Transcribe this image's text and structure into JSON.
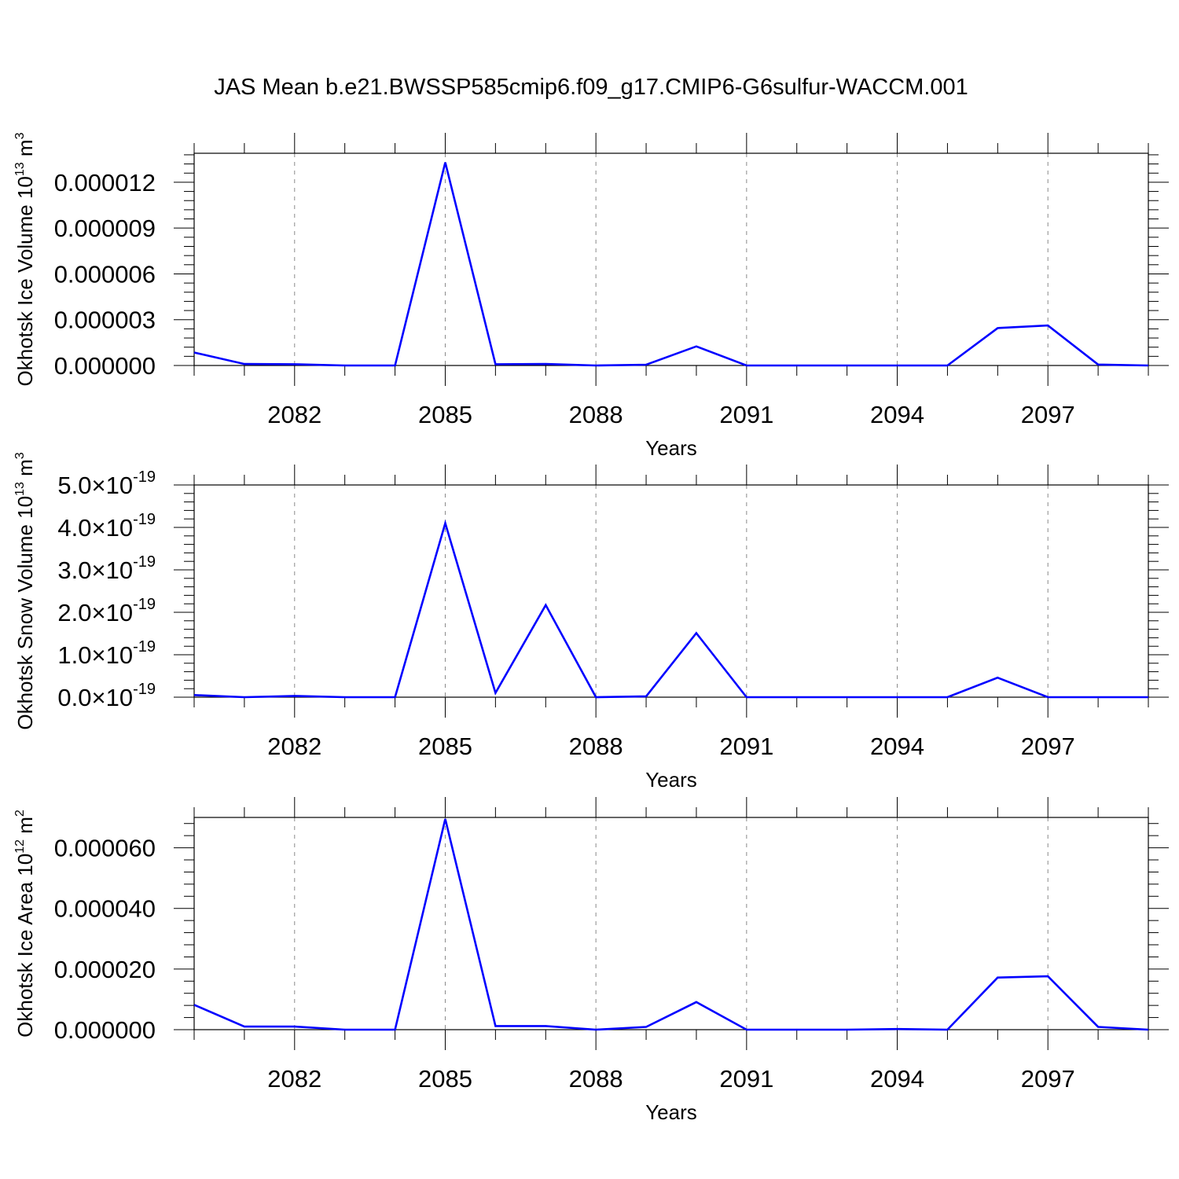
{
  "figure": {
    "title": "JAS Mean b.e21.BWSSP585cmip6.f09_g17.CMIP6-G6sulfur-WACCM.001"
  },
  "chart_data": [
    {
      "type": "line",
      "xlabel": "Years",
      "ylabel": "Okhotsk Ice Volume 10",
      "ylabel_exp": "13",
      "ylabel_unit": " m",
      "ylabel_unit_exp": "3",
      "line_color": "#0000ff",
      "grid": "vertical dashed at labeled years",
      "xlim": [
        2080,
        2099
      ],
      "ylim": [
        0,
        1.39e-05
      ],
      "x_ticks": [
        2082,
        2085,
        2088,
        2091,
        2094,
        2097
      ],
      "x_tick_labels": [
        "2082",
        "2085",
        "2088",
        "2091",
        "2094",
        "2097"
      ],
      "y_ticks": [
        0,
        3e-06,
        6e-06,
        9e-06,
        1.2e-05
      ],
      "y_tick_labels": [
        "0.000000",
        "0.000003",
        "0.000006",
        "0.000009",
        "0.000012"
      ],
      "x": [
        2080,
        2081,
        2082,
        2083,
        2084,
        2085,
        2086,
        2087,
        2088,
        2089,
        2090,
        2091,
        2092,
        2093,
        2094,
        2095,
        2096,
        2097,
        2098,
        2099
      ],
      "series": [
        {
          "values": [
            8.5e-07,
            1e-07,
            8e-08,
            0.0,
            0.0,
            1.33e-05,
            8e-08,
            1e-07,
            0.0,
            5e-08,
            1.25e-06,
            0.0,
            0.0,
            0.0,
            0.0,
            0.0,
            2.45e-06,
            2.62e-06,
            6e-08,
            0.0
          ]
        }
      ]
    },
    {
      "type": "line",
      "xlabel": "Years",
      "ylabel": "Okhotsk Snow Volume 10",
      "ylabel_exp": "13",
      "ylabel_unit": " m",
      "ylabel_unit_exp": "3",
      "line_color": "#0000ff",
      "grid": "vertical dashed at labeled years",
      "xlim": [
        2080,
        2099
      ],
      "ylim": [
        0,
        5e-19
      ],
      "x_ticks": [
        2082,
        2085,
        2088,
        2091,
        2094,
        2097
      ],
      "x_tick_labels": [
        "2082",
        "2085",
        "2088",
        "2091",
        "2094",
        "2097"
      ],
      "y_ticks": [
        0,
        1e-19,
        2e-19,
        3e-19,
        4e-19,
        5e-19
      ],
      "y_tick_mantissas": [
        "0.0",
        "1.0",
        "2.0",
        "3.0",
        "4.0",
        "5.0"
      ],
      "y_tick_times": "×10",
      "y_tick_exp": "-19",
      "x": [
        2080,
        2081,
        2082,
        2083,
        2084,
        2085,
        2086,
        2087,
        2088,
        2089,
        2090,
        2091,
        2092,
        2093,
        2094,
        2095,
        2096,
        2097,
        2098,
        2099
      ],
      "series": [
        {
          "values": [
            5e-21,
            0.0,
            3e-21,
            0.0,
            0.0,
            4.1e-19,
            1e-20,
            2.17e-19,
            0.0,
            2e-21,
            1.51e-19,
            0.0,
            0.0,
            0.0,
            0.0,
            0.0,
            4.6e-20,
            0.0,
            0.0,
            0.0
          ]
        }
      ]
    },
    {
      "type": "line",
      "xlabel": "Years",
      "ylabel": "Okhotsk Ice Area 10",
      "ylabel_exp": "12",
      "ylabel_unit": " m",
      "ylabel_unit_exp": "2",
      "line_color": "#0000ff",
      "grid": "vertical dashed at labeled years",
      "xlim": [
        2080,
        2099
      ],
      "ylim": [
        0,
        7e-05
      ],
      "x_ticks": [
        2082,
        2085,
        2088,
        2091,
        2094,
        2097
      ],
      "x_tick_labels": [
        "2082",
        "2085",
        "2088",
        "2091",
        "2094",
        "2097"
      ],
      "y_ticks": [
        0,
        2e-05,
        4e-05,
        6e-05
      ],
      "y_tick_labels": [
        "0.000000",
        "0.000020",
        "0.000040",
        "0.000060"
      ],
      "x": [
        2080,
        2081,
        2082,
        2083,
        2084,
        2085,
        2086,
        2087,
        2088,
        2089,
        2090,
        2091,
        2092,
        2093,
        2094,
        2095,
        2096,
        2097,
        2098,
        2099
      ],
      "series": [
        {
          "values": [
            8.2e-06,
            1e-06,
            1e-06,
            0.0,
            0.0,
            6.95e-05,
            1.2e-06,
            1.2e-06,
            0.0,
            9e-07,
            9.1e-06,
            0.0,
            0.0,
            0.0,
            2e-07,
            0.0,
            1.72e-05,
            1.76e-05,
            9e-07,
            0.0
          ]
        }
      ]
    }
  ]
}
